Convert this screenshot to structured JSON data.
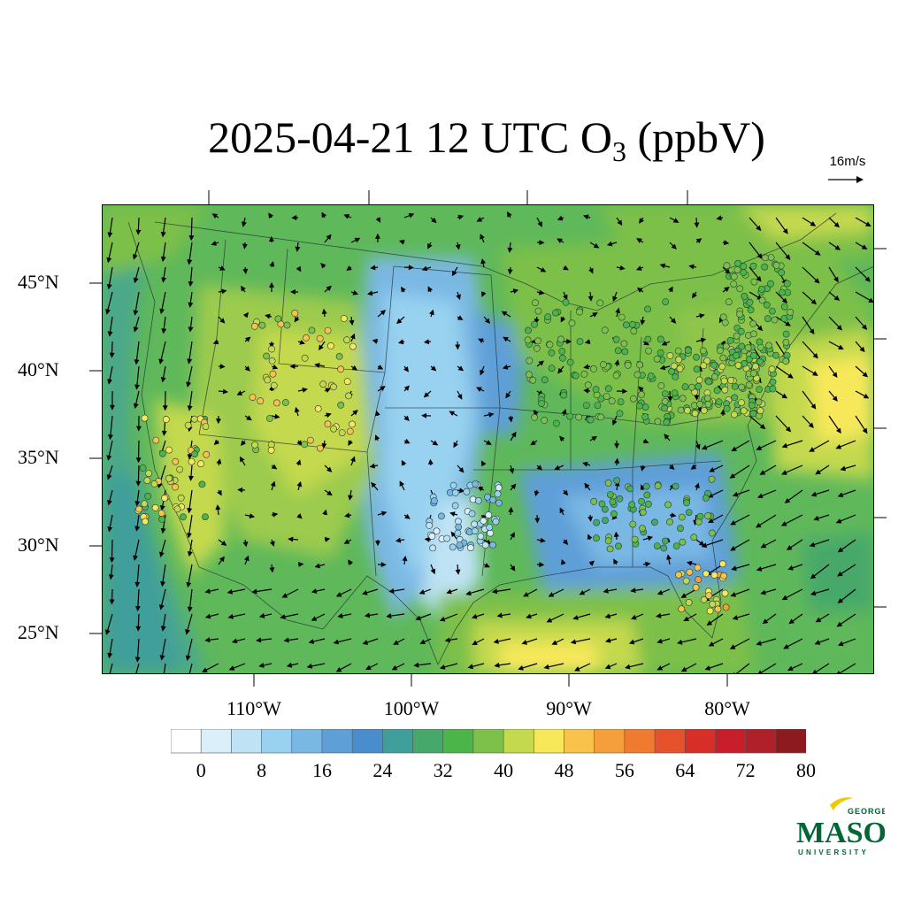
{
  "title": {
    "main": "2025-04-21 12 UTC O",
    "subscript": "3",
    "suffix": " (ppbV)"
  },
  "wind_scale": {
    "label": "16m/s"
  },
  "axes": {
    "lat_labels": [
      "45°N",
      "40°N",
      "35°N",
      "30°N",
      "25°N"
    ],
    "lon_labels": [
      "110°W",
      "100°W",
      "90°W",
      "80°W"
    ]
  },
  "colorbar": {
    "colors": [
      "#ffffff",
      "#dbeffa",
      "#bfe3f5",
      "#98d2f0",
      "#7ab8e4",
      "#5e9fd8",
      "#4a8dcc",
      "#3f9f9a",
      "#46a86a",
      "#4bb54a",
      "#7dc04a",
      "#c4d94e",
      "#f7e85a",
      "#f8c24b",
      "#f59e3c",
      "#f07a2f",
      "#e6522b",
      "#d62f28",
      "#c81e2b",
      "#b0202a",
      "#8c1a1f"
    ],
    "tick_labels": [
      "0",
      "8",
      "16",
      "24",
      "32",
      "40",
      "48",
      "56",
      "64",
      "72",
      "80"
    ],
    "range": [
      0,
      84
    ],
    "step": 4
  },
  "map": {
    "units": "ppbV",
    "variable": "O3",
    "valid_time": "2025-04-21 12 UTC"
  },
  "logo": {
    "top": "GEORGE",
    "middle": "MASON",
    "bottom": "UNIVERSITY",
    "color": "#006633",
    "accent": "#f2c700"
  }
}
